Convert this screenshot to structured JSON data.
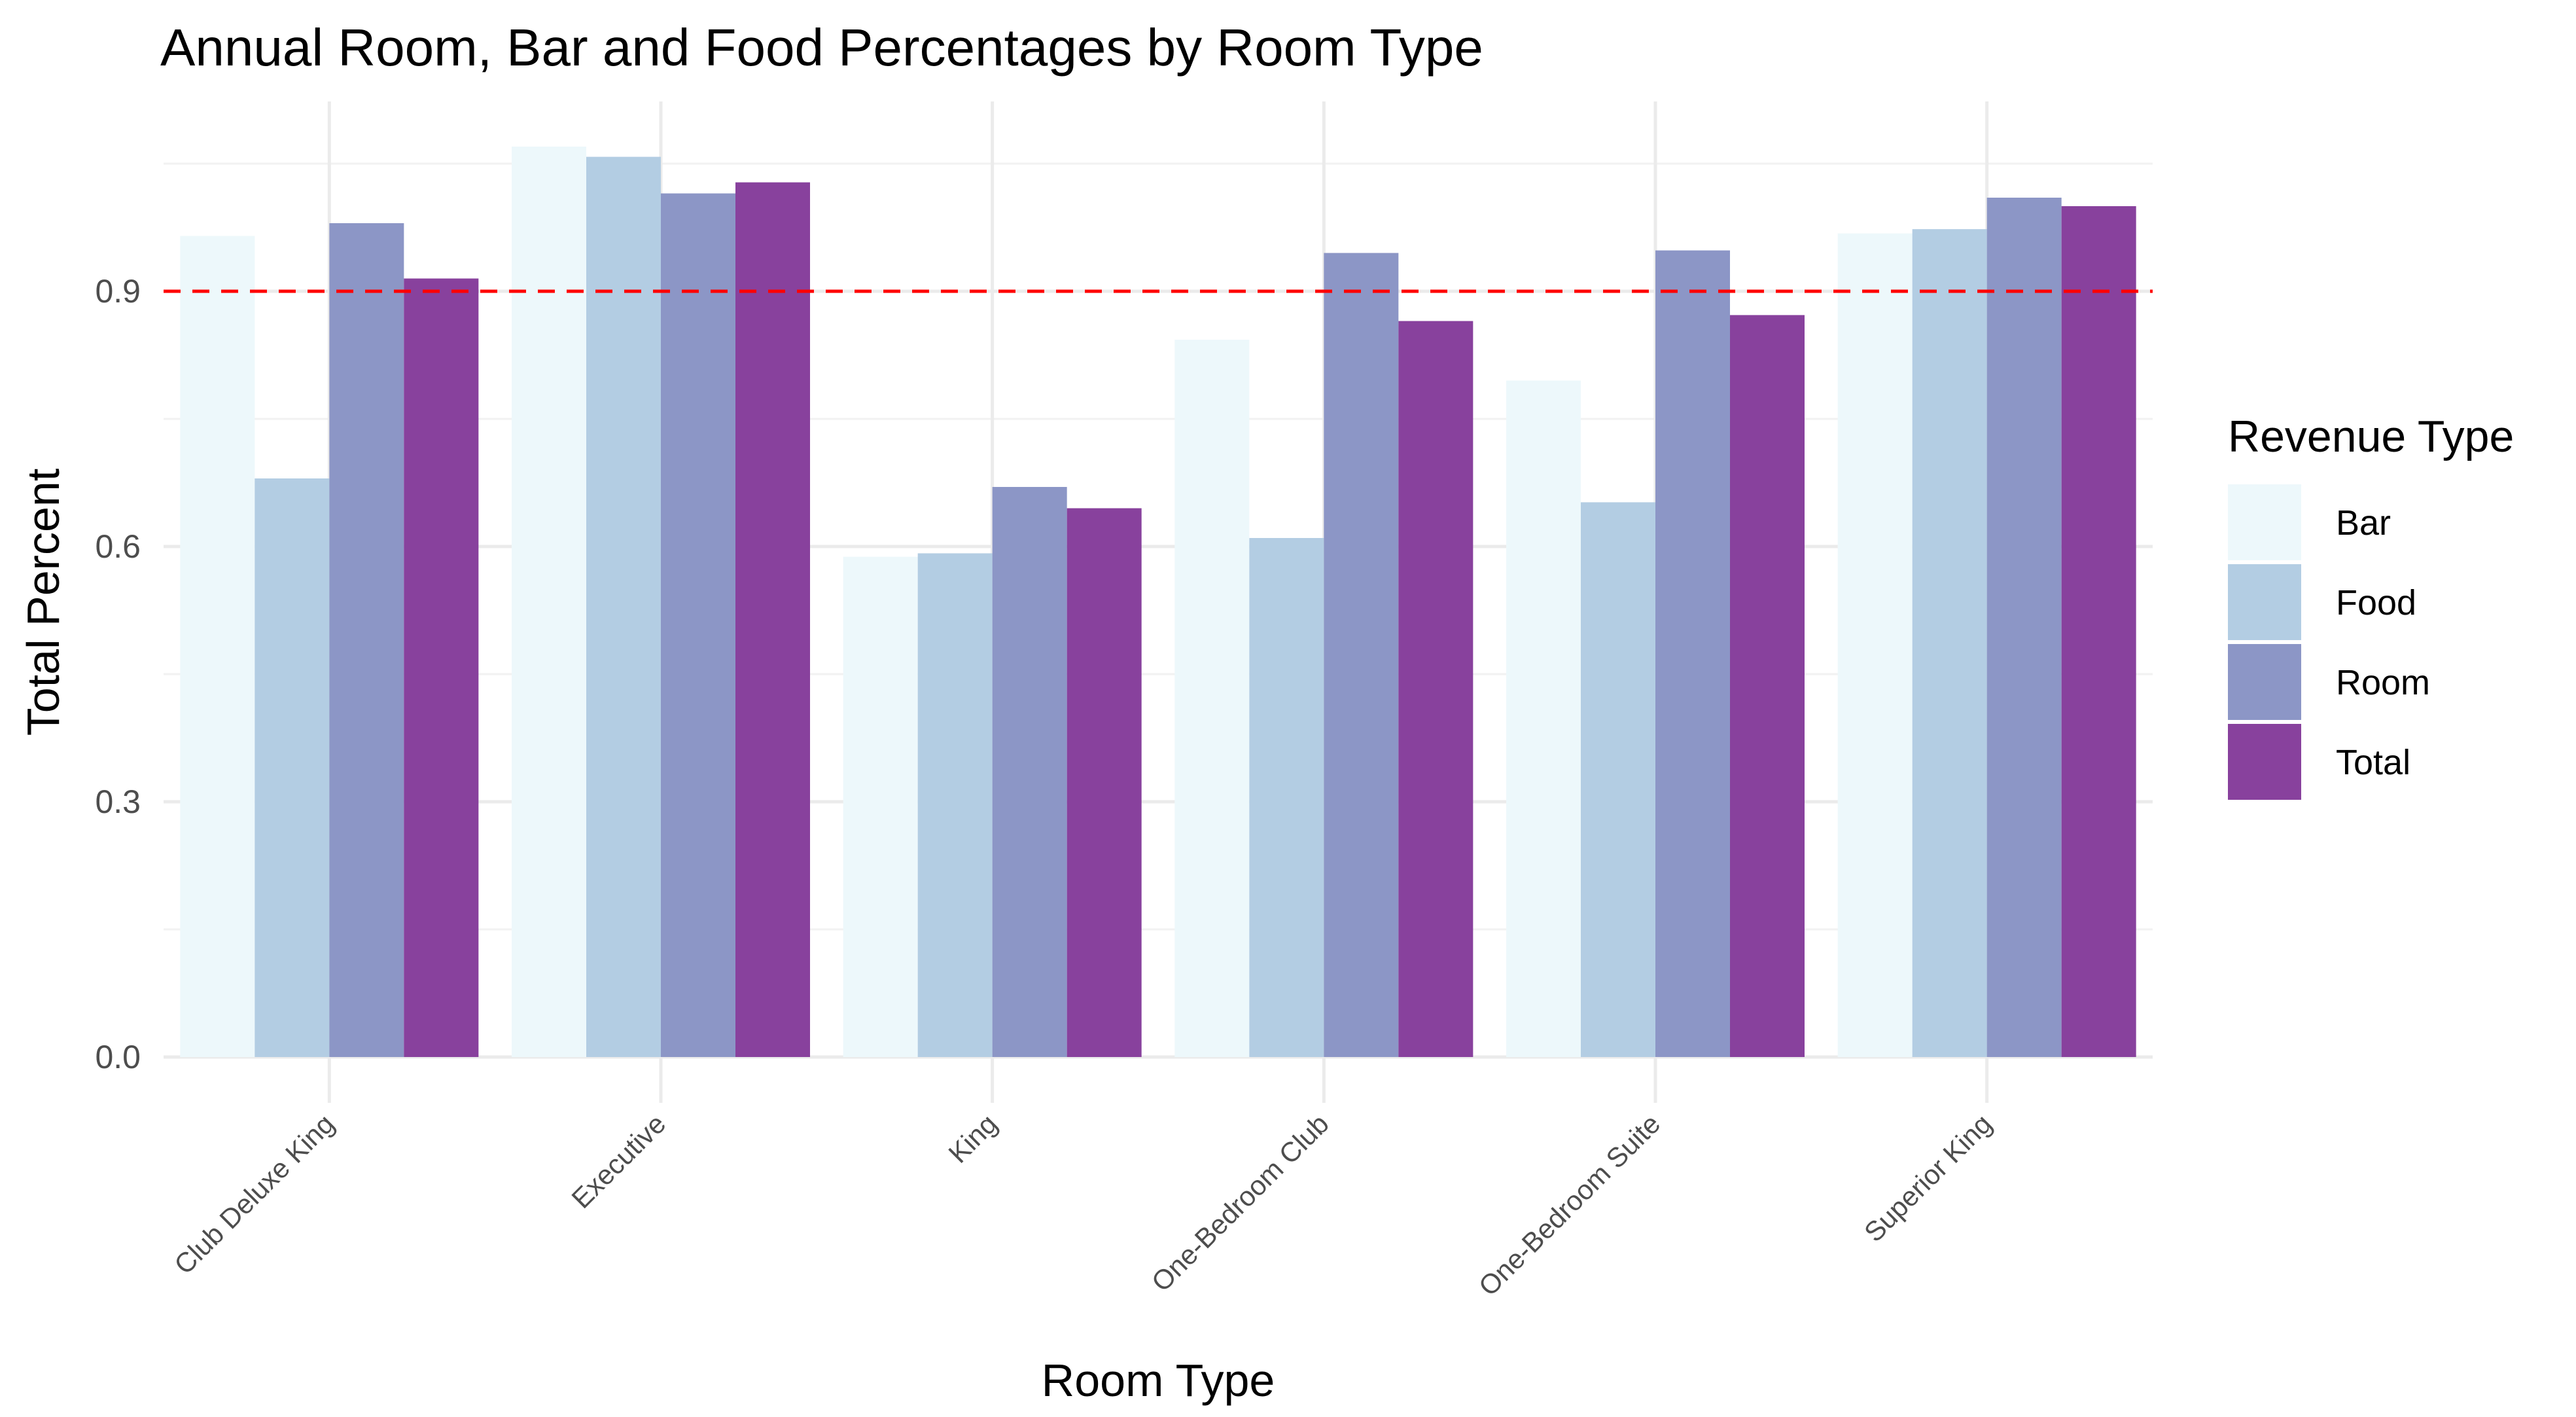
{
  "chart_data": {
    "type": "bar",
    "title": "Annual Room, Bar and Food Percentages by Room Type",
    "xlabel": "Room Type",
    "ylabel": "Total Percent",
    "categories": [
      "Club Deluxe King",
      "Executive",
      "King",
      "One-Bedroom Club",
      "One-Bedroom Suite",
      "Superior King"
    ],
    "series": [
      {
        "name": "Bar",
        "color": "#edf8fb",
        "values": [
          0.965,
          1.07,
          0.588,
          0.843,
          0.795,
          0.968
        ]
      },
      {
        "name": "Food",
        "color": "#b3cde3",
        "values": [
          0.68,
          1.058,
          0.592,
          0.61,
          0.652,
          0.973
        ]
      },
      {
        "name": "Room",
        "color": "#8c96c6",
        "values": [
          0.98,
          1.015,
          0.67,
          0.945,
          0.948,
          1.01
        ]
      },
      {
        "name": "Total",
        "color": "#88419d",
        "values": [
          0.915,
          1.028,
          0.645,
          0.865,
          0.872,
          1.0
        ]
      }
    ],
    "ylim": [
      0,
      1.12
    ],
    "yticks": [
      0.0,
      0.3,
      0.6,
      0.9
    ],
    "ytick_labels": [
      "0.0",
      "0.3",
      "0.6",
      "0.9"
    ],
    "reference_line": {
      "value": 0.9,
      "color": "#ff0000",
      "style": "dashed"
    },
    "grid": true,
    "legend": {
      "title": "Revenue Type",
      "placement": "right"
    }
  }
}
